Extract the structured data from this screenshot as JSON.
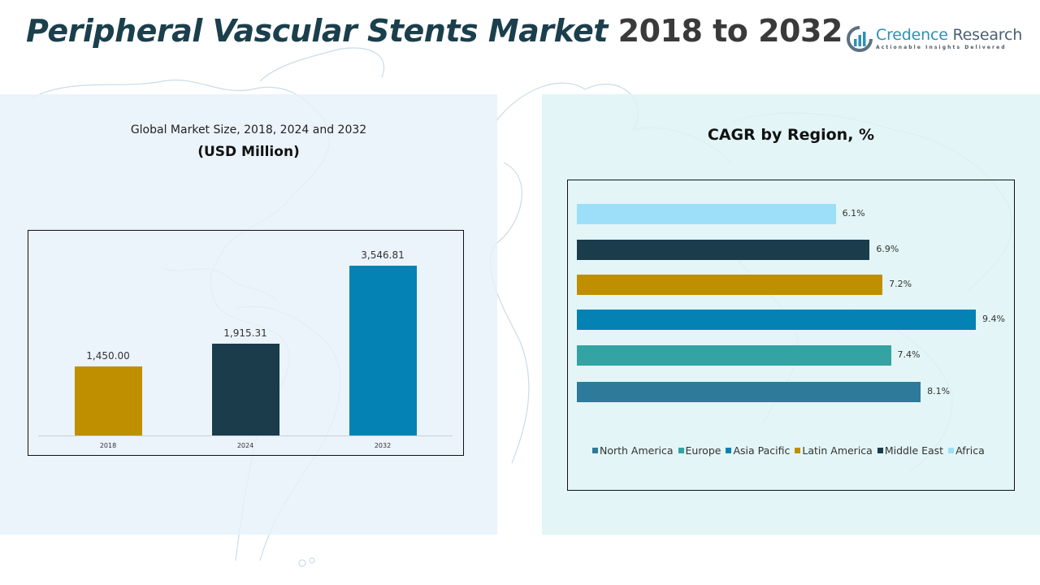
{
  "header": {
    "title_main": "Peripheral Vascular Stents Market",
    "title_years": "2018 to 2032"
  },
  "logo": {
    "icon": "bar-chart-circle-icon",
    "name_part1": "Credence",
    "name_part2": "Research",
    "tagline": "Actionable Insights Delivered"
  },
  "left_panel": {
    "subtitle": "Global Market Size, 2018, 2024 and 2032",
    "unit": "(USD Million)"
  },
  "right_panel": {
    "title": "CAGR by Region, %"
  },
  "colors": {
    "gold": "#c08f00",
    "dark_teal": "#1a3c4b",
    "blue": "#0582b4",
    "teal": "#33a3a3",
    "steel_blue": "#2e7a9a",
    "light_blue": "#9ddff8",
    "title": "#1b3f4c"
  },
  "chart_data": [
    {
      "type": "bar",
      "title": "Global Market Size, 2018, 2024 and 2032",
      "subtitle": "(USD Million)",
      "xlabel": "",
      "ylabel": "USD Million",
      "categories": [
        "2018",
        "2024",
        "2032"
      ],
      "values": [
        1450.0,
        1915.31,
        3546.81
      ],
      "value_labels": [
        "1,450.00",
        "1,915.31",
        "3,546.81"
      ],
      "bar_colors": [
        "#c08f00",
        "#1a3c4b",
        "#0582b4"
      ],
      "grid": false,
      "legend": "none"
    },
    {
      "type": "bar",
      "orientation": "horizontal",
      "title": "CAGR by Region, %",
      "categories": [
        "Africa",
        "Middle East",
        "Latin America",
        "Asia Pacific",
        "Europe",
        "North America"
      ],
      "values": [
        6.1,
        6.9,
        7.2,
        9.4,
        7.4,
        8.1
      ],
      "value_labels": [
        "6.1%",
        "6.9%",
        "7.2%",
        "9.4%",
        "7.4%",
        "8.1%"
      ],
      "bar_colors": [
        "#9ddff8",
        "#1a3c4b",
        "#c08f00",
        "#0582b4",
        "#33a3a3",
        "#2e7a9a"
      ],
      "legend_position": "bottom",
      "legend": [
        "North America",
        "Europe",
        "Asia Pacific",
        "Latin America",
        "Middle East",
        "Africa"
      ],
      "grid": false
    }
  ]
}
